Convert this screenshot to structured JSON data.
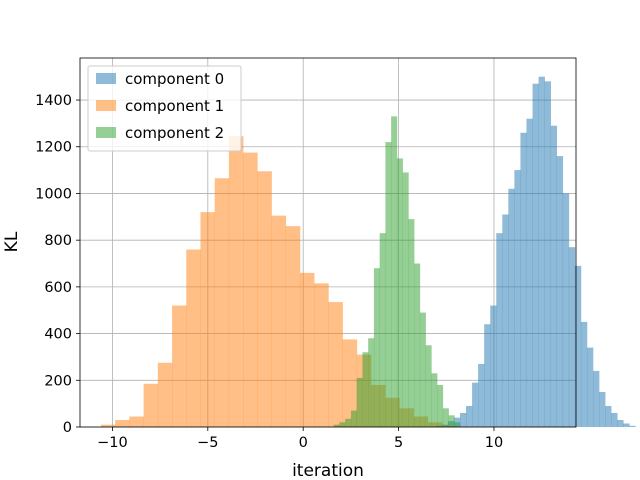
{
  "chart_data": {
    "type": "bar",
    "subtype": "histogram",
    "title": "",
    "xlabel": "iteration",
    "ylabel": "KL",
    "xlim": [
      -11.7,
      14.3
    ],
    "ylim": [
      0,
      1580
    ],
    "xticks": [
      -10,
      -5,
      0,
      5,
      10
    ],
    "xtick_labels": [
      "−10",
      "−5",
      "0",
      "5",
      "10"
    ],
    "yticks": [
      0,
      200,
      400,
      600,
      800,
      1000,
      1200,
      1400
    ],
    "ytick_labels": [
      "0",
      "200",
      "400",
      "600",
      "800",
      "1000",
      "1200",
      "1400"
    ],
    "grid": true,
    "legend_position": "upper left",
    "bar_alpha": 0.5,
    "series": [
      {
        "name": "component 0",
        "color": "#1f77b4",
        "bin_start": 6.95,
        "bin_width": 0.317,
        "values": [
          5,
          10,
          25,
          40,
          60,
          90,
          190,
          270,
          440,
          520,
          830,
          910,
          1020,
          1100,
          1260,
          1320,
          1470,
          1500,
          1480,
          1290,
          1160,
          1000,
          770,
          690,
          450,
          340,
          240,
          150,
          90,
          60,
          30,
          15,
          5
        ]
      },
      {
        "name": "component 1",
        "color": "#ff7f0e",
        "bin_start": -10.6,
        "bin_width": 0.745,
        "values": [
          10,
          30,
          45,
          185,
          275,
          520,
          760,
          920,
          1065,
          1245,
          1175,
          1095,
          905,
          860,
          660,
          615,
          535,
          375,
          310,
          180,
          125,
          80,
          45,
          20,
          5
        ]
      },
      {
        "name": "component 2",
        "color": "#2ca02c",
        "bin_start": 1.6,
        "bin_width": 0.301,
        "values": [
          10,
          20,
          35,
          70,
          210,
          320,
          380,
          680,
          830,
          1220,
          1330,
          1150,
          1090,
          890,
          700,
          490,
          350,
          230,
          180,
          80,
          50,
          20
        ]
      }
    ]
  }
}
